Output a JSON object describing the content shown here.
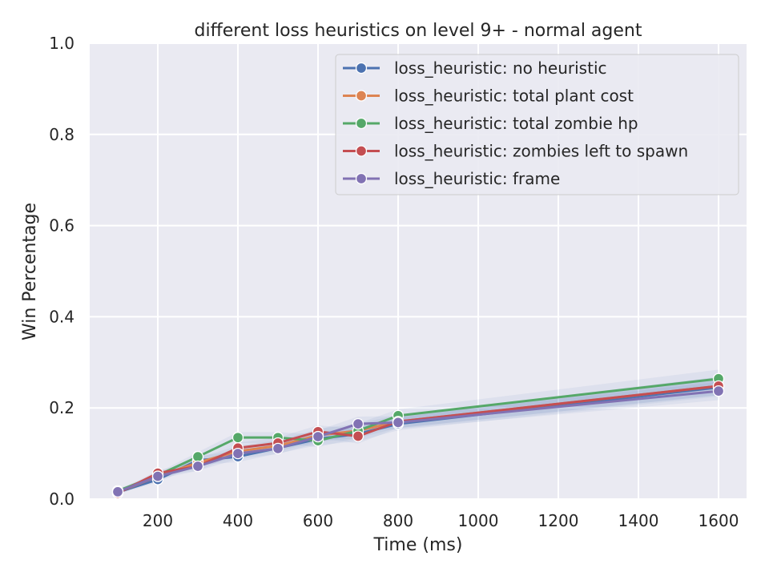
{
  "chart_data": {
    "type": "line",
    "title": "different loss heuristics on level 9+ - normal agent",
    "xlabel": "Time (ms)",
    "ylabel": "Win Percentage",
    "xlim": [
      30,
      1670
    ],
    "ylim": [
      0,
      1.0
    ],
    "xticks": [
      200,
      400,
      600,
      800,
      1000,
      1200,
      1400,
      1600
    ],
    "yticks": [
      0.0,
      0.2,
      0.4,
      0.6,
      0.8,
      1.0
    ],
    "xtick_labels": [
      "200",
      "400",
      "600",
      "800",
      "1000",
      "1200",
      "1400",
      "1600"
    ],
    "ytick_labels": [
      "0.0",
      "0.2",
      "0.4",
      "0.6",
      "0.8",
      "1.0"
    ],
    "grid": true,
    "legend_position": "top-right",
    "x": [
      100,
      200,
      300,
      400,
      500,
      600,
      700,
      800,
      1600
    ],
    "series": [
      {
        "name": "loss_heuristic: no heuristic",
        "color": "#4c72b0",
        "values": [
          0.015,
          0.043,
          0.085,
          0.093,
          0.112,
          0.132,
          0.143,
          0.165,
          0.245
        ]
      },
      {
        "name": "loss_heuristic: total plant cost",
        "color": "#dd8452",
        "values": [
          0.015,
          0.05,
          0.08,
          0.105,
          0.117,
          0.14,
          0.15,
          0.17,
          0.248
        ]
      },
      {
        "name": "loss_heuristic: total zombie hp",
        "color": "#55a868",
        "values": [
          0.018,
          0.052,
          0.093,
          0.135,
          0.135,
          0.128,
          0.15,
          0.183,
          0.264
        ]
      },
      {
        "name": "loss_heuristic: zombies left to spawn",
        "color": "#c44e52",
        "values": [
          0.013,
          0.057,
          0.072,
          0.112,
          0.123,
          0.148,
          0.138,
          0.17,
          0.248
        ]
      },
      {
        "name": "loss_heuristic: frame",
        "color": "#8172b3",
        "values": [
          0.016,
          0.05,
          0.072,
          0.1,
          0.111,
          0.137,
          0.165,
          0.168,
          0.237
        ]
      }
    ],
    "confidence_band_color": "#4c72b0"
  }
}
